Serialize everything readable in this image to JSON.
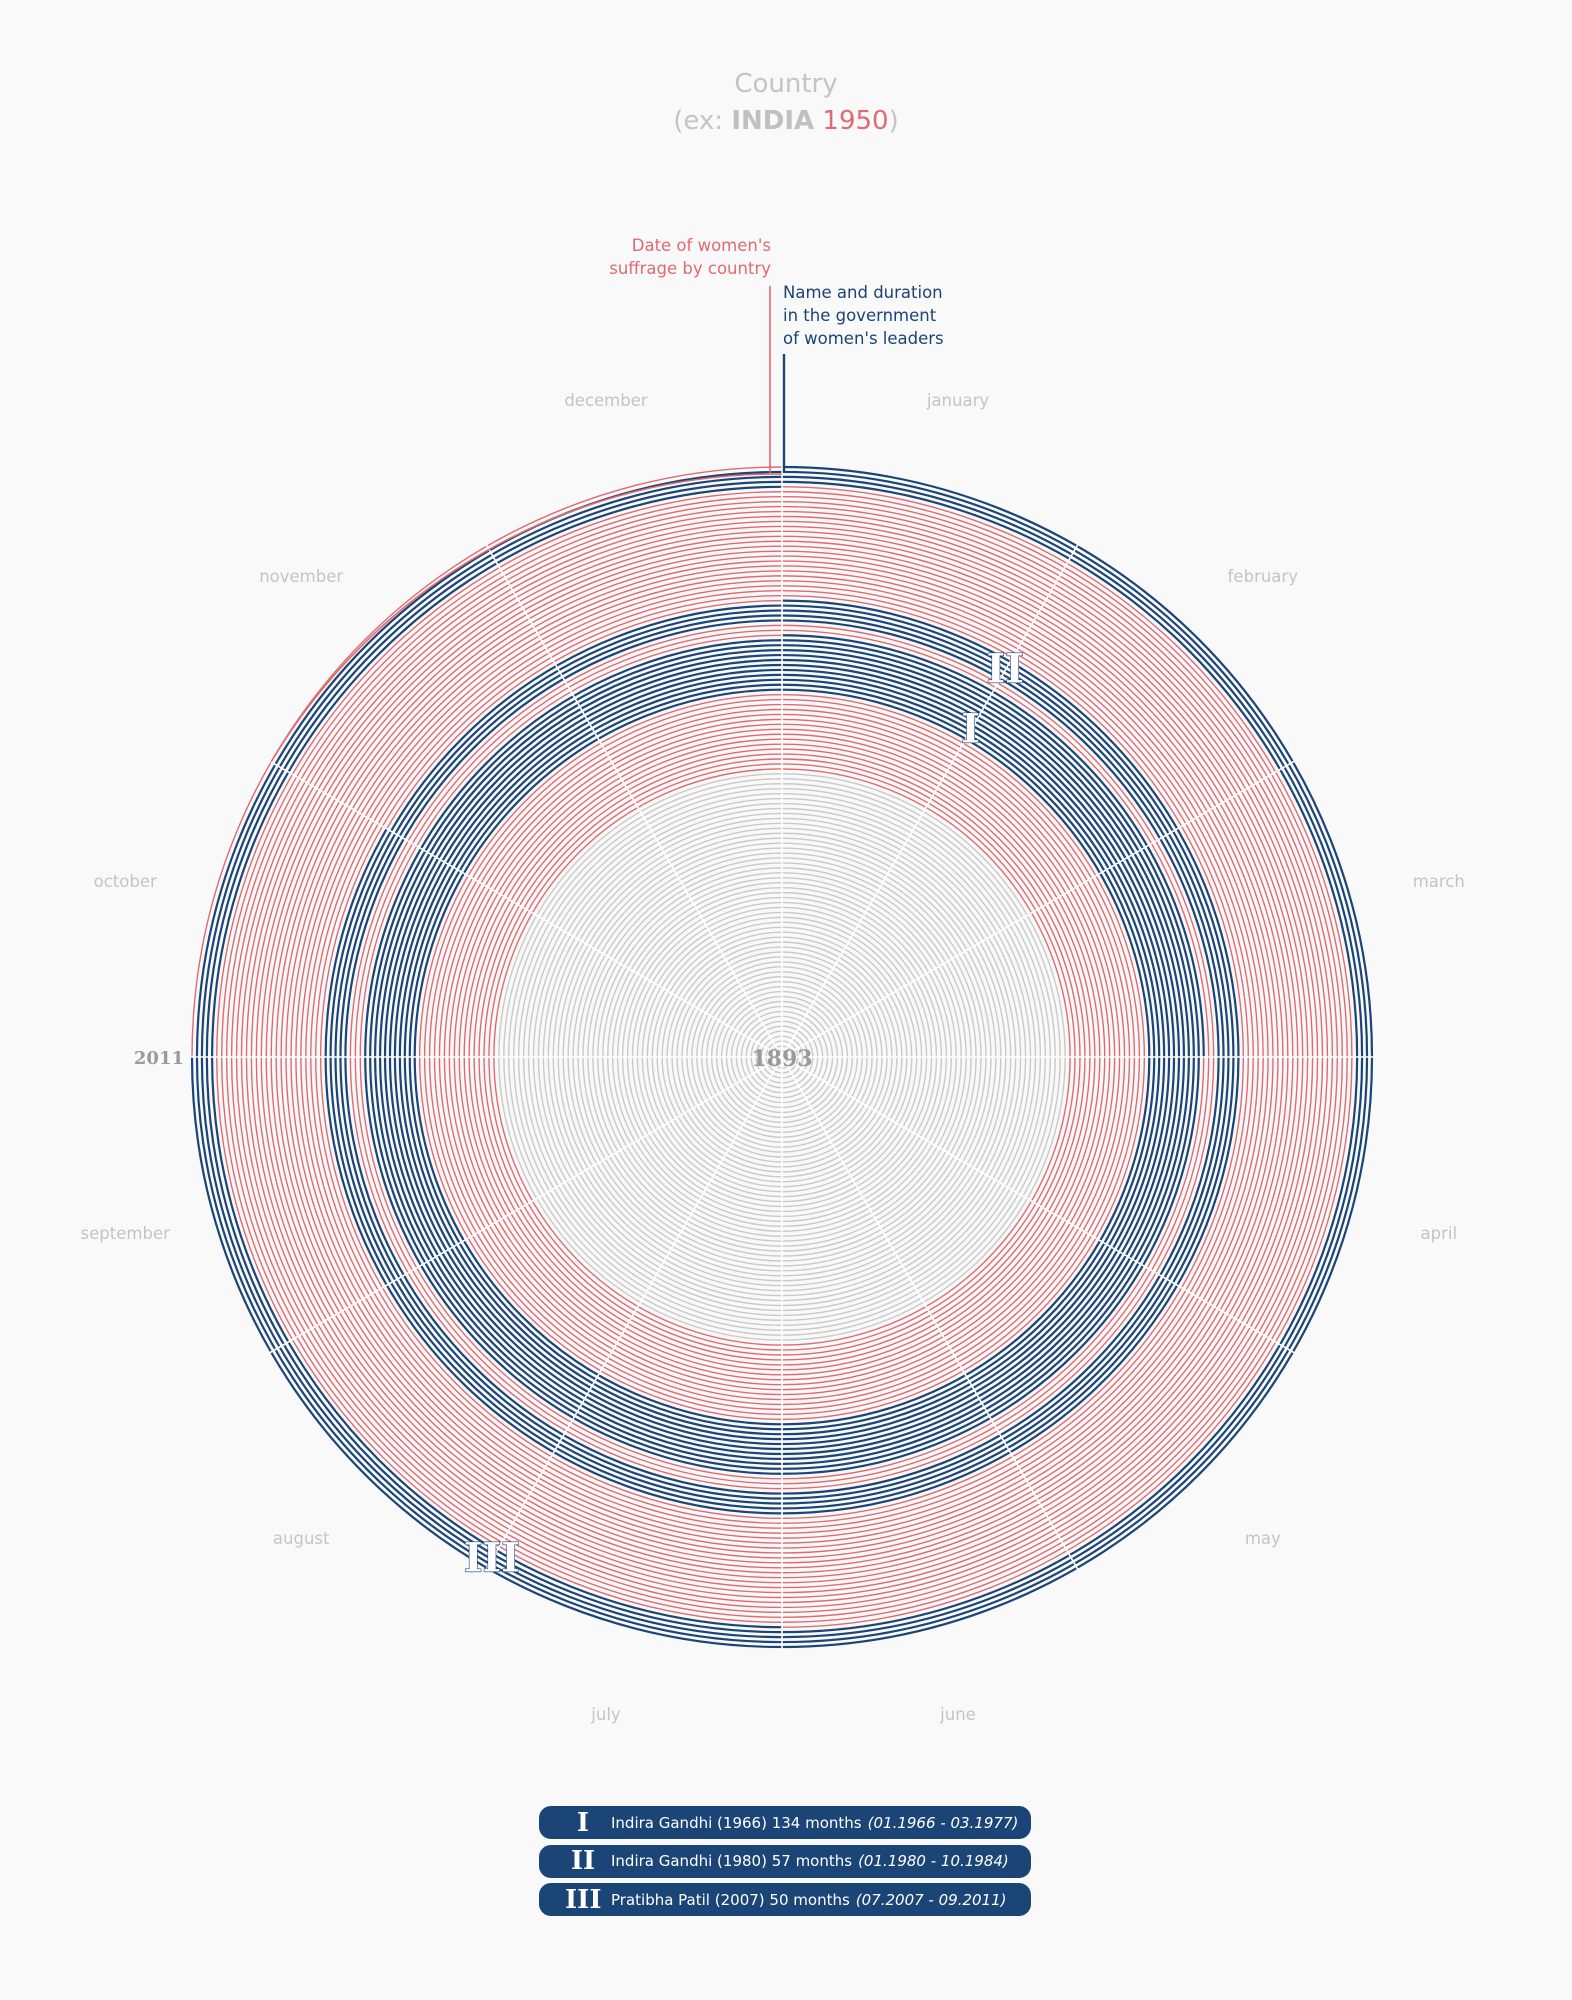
{
  "header": {
    "country_label": "Country",
    "example_prefix": "(ex:",
    "example_country": "INDIA",
    "example_year": "1950",
    "example_suffix": ")"
  },
  "annotations": {
    "suffrage_line1": "Date of women's",
    "suffrage_line2": "suffrage by country",
    "leaders_line1": "Name and duration",
    "leaders_line2": "in the government",
    "leaders_line3": "of women's leaders"
  },
  "colors": {
    "pre_suffrage": "#c9c9c9",
    "suffrage": "#e06a70",
    "leader": "#1b4577",
    "month_label": "#c4c4c4",
    "year_label": "#9a9a9a",
    "background": "#f9f9f9"
  },
  "chart_data": {
    "type": "radial-spiral",
    "country": "INDIA",
    "suffrage_year": 1950,
    "start_year": 1893,
    "end_year": 2011,
    "center_label": "1893",
    "outer_label": "2011",
    "months": [
      "january",
      "february",
      "march",
      "april",
      "may",
      "june",
      "july",
      "august",
      "september",
      "october",
      "november",
      "december"
    ],
    "leaders": [
      {
        "numeral": "I",
        "name": "Indira Gandhi",
        "year": "(1966)",
        "months": 134,
        "duration_text": "134 months",
        "period": "(01.1966 - 03.1977)",
        "start": "1966-01",
        "end": "1977-03"
      },
      {
        "numeral": "II",
        "name": "Indira Gandhi",
        "year": "(1980)",
        "months": 57,
        "duration_text": "57 months",
        "period": "(01.1980 - 10.1984)",
        "start": "1980-01",
        "end": "1984-10"
      },
      {
        "numeral": "III",
        "name": "Pratibha Patil",
        "year": "(2007)",
        "months": 50,
        "duration_text": "50 months",
        "period": "(07.2007 - 09.2011)",
        "start": "2007-07",
        "end": "2011-09"
      }
    ]
  }
}
